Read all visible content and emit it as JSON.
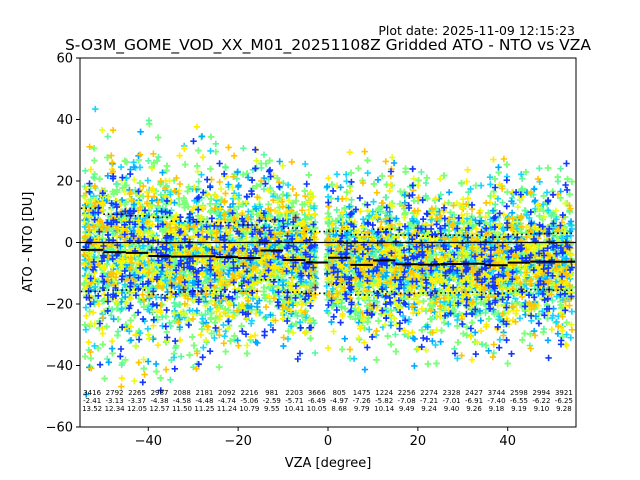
{
  "chart_data": {
    "type": "scatter",
    "title": "S-O3M_GOME_VOD_XX_M01_20251108Z Gridded ATO - NTO vs VZA",
    "plot_date": "Plot date: 2025-11-09 12:15:23",
    "xlabel": "VZA [degree]",
    "ylabel": "ATO - NTO [DU]",
    "xlim": [
      -55.2,
      55.2
    ],
    "ylim": [
      -60,
      60
    ],
    "xticks": [
      -40,
      -20,
      0,
      20,
      40
    ],
    "xtick_labels": [
      "−40",
      "−20",
      "0",
      "20",
      "40"
    ],
    "yticks": [
      -60,
      -40,
      -20,
      0,
      20,
      40,
      60
    ],
    "ytick_labels": [
      "−60",
      "−40",
      "−20",
      "0",
      "20",
      "40",
      "60"
    ],
    "grid": false,
    "zero_line": 0,
    "marker": "+",
    "point_colors": [
      "#7dff7a",
      "#7dff7a",
      "#7dff7a",
      "#5cf7a3",
      "#16d4ff",
      "#00a8ff",
      "#e4ff1a",
      "#ffee00",
      "#ffc400",
      "#1238ff"
    ],
    "bins": {
      "centers": [
        -52.5,
        -47.5,
        -42.5,
        -37.5,
        -32.5,
        -27.5,
        -22.5,
        -17.5,
        -12.5,
        -7.5,
        -2.5,
        2.5,
        7.5,
        12.5,
        17.5,
        22.5,
        27.5,
        32.5,
        37.5,
        42.5,
        47.5,
        52.5
      ],
      "counts": [
        "3416",
        "2792",
        "2265",
        "2987",
        "2088",
        "2181",
        "2092",
        "2216",
        "981",
        "2203",
        "3666",
        "805",
        "1475",
        "1224",
        "2256",
        "2274",
        "2328",
        "2427",
        "3744",
        "2598",
        "2994",
        "3921"
      ],
      "means": [
        "-2.41",
        "-3.13",
        "-3.37",
        "-4.38",
        "-4.58",
        "-4.48",
        "-4.74",
        "-5.06",
        "-2.59",
        "-5.71",
        "-6.49",
        "-4.97",
        "-7.26",
        "-5.82",
        "-7.08",
        "-7.21",
        "-7.01",
        "-6.91",
        "-7.40",
        "-6.55",
        "-6.22",
        "-6.25"
      ],
      "stds": [
        "13.52",
        "12.34",
        "12.05",
        "12.57",
        "11.50",
        "11.25",
        "11.24",
        "10.79",
        "9.55",
        "10.41",
        "10.05",
        "8.68",
        "9.79",
        "10.14",
        "9.49",
        "9.24",
        "9.40",
        "9.26",
        "9.18",
        "9.19",
        "9.10",
        "9.28"
      ]
    },
    "series": [
      {
        "name": "bin mean",
        "style": "solid",
        "color": "#000000"
      },
      {
        "name": "bin mean + std",
        "style": "dotted",
        "color": "#000000"
      },
      {
        "name": "bin mean - std",
        "style": "dotted",
        "color": "#000000"
      }
    ]
  }
}
